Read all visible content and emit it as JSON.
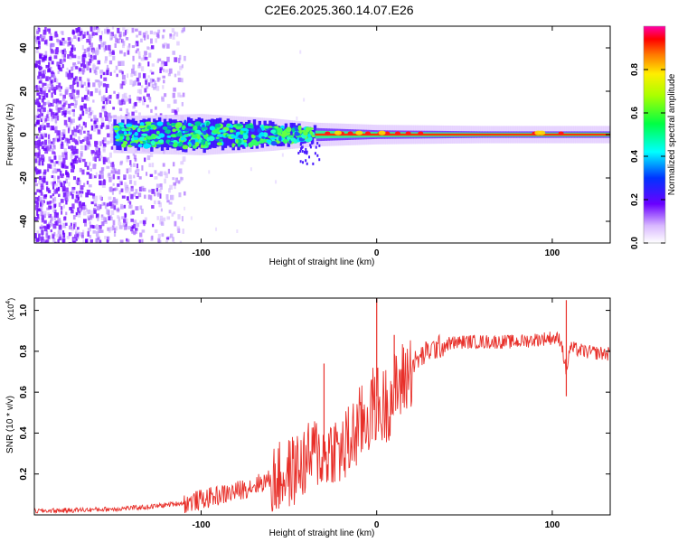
{
  "title": "C2E6.2025.360.14.07.E26",
  "chart_data": [
    {
      "type": "heatmap",
      "title": "C2E6.2025.360.14.07.E26",
      "xlabel": "Height of straight line (km)",
      "ylabel": "Frequency (Hz)",
      "xlim": [
        -195,
        133
      ],
      "ylim": [
        -50,
        50
      ],
      "x_ticks": [
        -100,
        0,
        100
      ],
      "y_ticks": [
        -40,
        -20,
        0,
        20,
        40
      ],
      "x_tick_labels": [
        "-100",
        "0",
        "100"
      ],
      "y_tick_labels": [
        "-40",
        "-20",
        "0",
        "20",
        "40"
      ],
      "colorbar": {
        "label": "Normalized spectral amplitude",
        "range": [
          0,
          1
        ],
        "ticks": [
          0.0,
          0.2,
          0.4,
          0.6,
          0.8
        ],
        "tick_labels": [
          "0.0",
          "0.2",
          "0.4",
          "0.6",
          "0.8"
        ],
        "colors": [
          "#ffffff",
          "#6a00ff",
          "#0033ff",
          "#00ffff",
          "#00ff44",
          "#aaff00",
          "#ffee00",
          "#ff7700",
          "#ff0000",
          "#ff00aa"
        ]
      },
      "spectral_line": {
        "center_freq_hz": 0,
        "band_halfwidth_hz": [
          {
            "x": -150,
            "w": 6
          },
          {
            "x": -100,
            "w": 7
          },
          {
            "x": -60,
            "w": 5
          },
          {
            "x": -35,
            "w": 3
          },
          {
            "x": 0,
            "w": 2
          },
          {
            "x": 60,
            "w": 1.5
          },
          {
            "x": 133,
            "w": 1.5
          }
        ],
        "noise_region_x": [
          -195,
          -110
        ]
      }
    },
    {
      "type": "line",
      "title": "",
      "xlabel": "Height of straight line (km)",
      "ylabel": "SNR (10 * v/v)",
      "y_scale_label": "(x10",
      "y_scale_exponent": "4",
      "y_scale_suffix": ")",
      "xlim": [
        -195,
        133
      ],
      "ylim": [
        0,
        1.06
      ],
      "x_ticks": [
        -100,
        0,
        100
      ],
      "y_ticks": [
        0.2,
        0.4,
        0.6,
        0.8,
        1.0
      ],
      "x_tick_labels": [
        "-100",
        "0",
        "100"
      ],
      "y_tick_labels": [
        "0.2",
        "0.4",
        "0.6",
        "0.8",
        "1.0"
      ],
      "series": [
        {
          "name": "SNR",
          "color": "#e8302a",
          "x": [
            -195,
            -170,
            -150,
            -130,
            -110,
            -100,
            -90,
            -80,
            -70,
            -60,
            -50,
            -40,
            -35,
            -30,
            -25,
            -20,
            -15,
            -10,
            -5,
            -2,
            0,
            2,
            5,
            10,
            15,
            20,
            30,
            40,
            50,
            60,
            70,
            80,
            90,
            100,
            105,
            108,
            110,
            115,
            120,
            133
          ],
          "y": [
            0.02,
            0.025,
            0.03,
            0.04,
            0.06,
            0.08,
            0.1,
            0.12,
            0.15,
            0.18,
            0.22,
            0.28,
            0.33,
            0.3,
            0.35,
            0.32,
            0.38,
            0.45,
            0.5,
            0.55,
            0.58,
            0.52,
            0.56,
            0.62,
            0.68,
            0.74,
            0.81,
            0.84,
            0.85,
            0.85,
            0.85,
            0.85,
            0.86,
            0.87,
            0.86,
            0.7,
            0.82,
            0.81,
            0.8,
            0.79
          ]
        }
      ],
      "spikes": [
        {
          "x": 0,
          "y": 1.06
        },
        {
          "x": -30,
          "y": 0.74
        },
        {
          "x": 10,
          "y": 0.88
        },
        {
          "x": 108,
          "y": 1.05
        },
        {
          "x": 108,
          "y": 0.58
        }
      ]
    }
  ]
}
